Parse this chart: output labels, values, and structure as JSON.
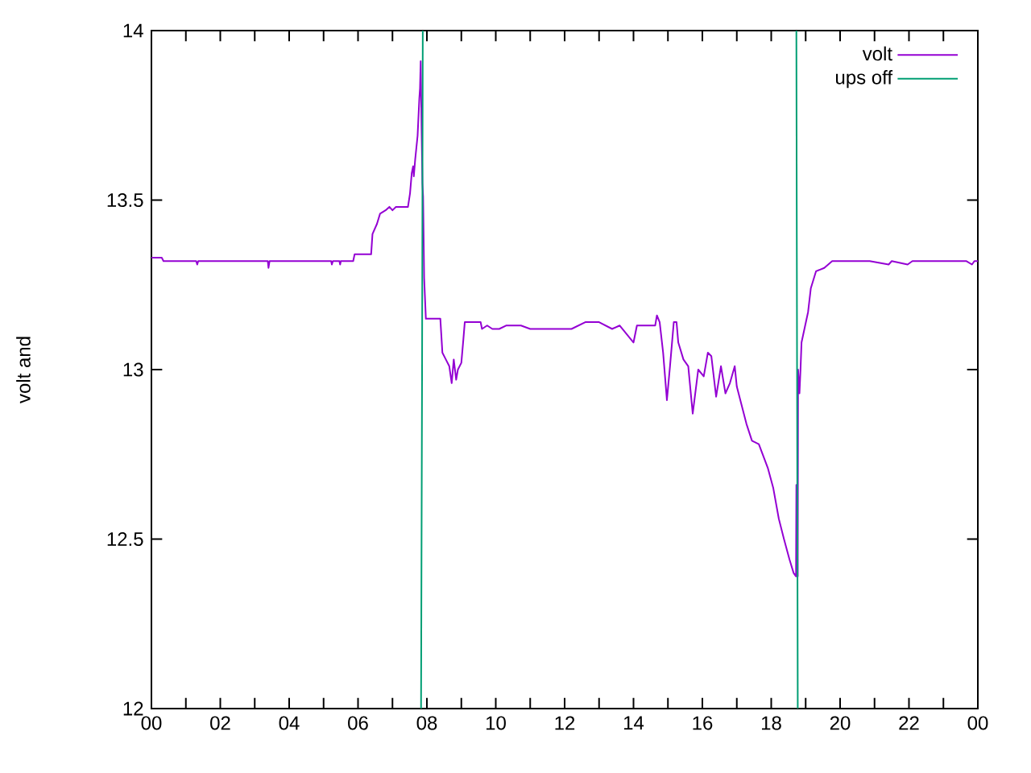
{
  "chart_data": {
    "type": "line",
    "ylabel": "volt and",
    "legend": "top right",
    "xlim": [
      0,
      24
    ],
    "ylim": [
      12,
      14
    ],
    "xticks": [
      {
        "value": 0,
        "label": "00"
      },
      {
        "value": 1,
        "label": null
      },
      {
        "value": 2,
        "label": "02"
      },
      {
        "value": 3,
        "label": null
      },
      {
        "value": 4,
        "label": "04"
      },
      {
        "value": 5,
        "label": null
      },
      {
        "value": 6,
        "label": "06"
      },
      {
        "value": 7,
        "label": null
      },
      {
        "value": 8,
        "label": "08"
      },
      {
        "value": 9,
        "label": null
      },
      {
        "value": 10,
        "label": "10"
      },
      {
        "value": 11,
        "label": null
      },
      {
        "value": 12,
        "label": "12"
      },
      {
        "value": 13,
        "label": null
      },
      {
        "value": 14,
        "label": "14"
      },
      {
        "value": 15,
        "label": null
      },
      {
        "value": 16,
        "label": "16"
      },
      {
        "value": 17,
        "label": null
      },
      {
        "value": 18,
        "label": "18"
      },
      {
        "value": 19,
        "label": null
      },
      {
        "value": 20,
        "label": "20"
      },
      {
        "value": 21,
        "label": null
      },
      {
        "value": 22,
        "label": "22"
      },
      {
        "value": 23,
        "label": null
      },
      {
        "value": 24,
        "label": "00"
      }
    ],
    "yticks": [
      12,
      12.5,
      13,
      13.5,
      14
    ],
    "series": [
      {
        "name": "volt",
        "color": "#9400d3",
        "x": [
          0,
          0.3,
          0.35,
          1.3,
          1.33,
          1.36,
          3.38,
          3.4,
          3.43,
          5.22,
          5.24,
          5.27,
          5.46,
          5.48,
          5.5,
          5.86,
          5.9,
          6.38,
          6.42,
          6.55,
          6.64,
          6.8,
          6.91,
          7.0,
          7.1,
          7.45,
          7.51,
          7.56,
          7.6,
          7.62,
          7.66,
          7.73,
          7.78,
          7.8,
          7.82,
          7.84,
          7.87,
          7.89,
          7.92,
          7.97,
          8.39,
          8.45,
          8.55,
          8.65,
          8.72,
          8.78,
          8.85,
          8.9,
          9.0,
          9.06,
          9.1,
          9.56,
          9.6,
          9.75,
          9.9,
          10.1,
          10.3,
          10.73,
          11.0,
          11.66,
          12.2,
          12.6,
          13.0,
          13.38,
          13.6,
          14.0,
          14.1,
          14.63,
          14.68,
          14.76,
          14.86,
          14.97,
          15.06,
          15.17,
          15.25,
          15.3,
          15.45,
          15.59,
          15.72,
          15.88,
          16.04,
          16.16,
          16.26,
          16.4,
          16.54,
          16.67,
          16.8,
          16.94,
          17.0,
          17.28,
          17.44,
          17.64,
          17.9,
          18.06,
          18.22,
          18.37,
          18.53,
          18.65,
          18.72,
          18.73,
          18.74,
          18.77,
          18.78,
          18.82,
          18.85,
          18.88,
          19.07,
          19.15,
          19.3,
          19.54,
          19.77,
          20.86,
          21.41,
          21.5,
          21.96,
          22.1,
          23.67,
          23.83,
          23.9,
          24
        ],
        "values": [
          13.33,
          13.33,
          13.32,
          13.32,
          13.31,
          13.32,
          13.32,
          13.3,
          13.32,
          13.32,
          13.31,
          13.32,
          13.32,
          13.31,
          13.32,
          13.32,
          13.34,
          13.34,
          13.4,
          13.43,
          13.46,
          13.47,
          13.48,
          13.47,
          13.48,
          13.48,
          13.52,
          13.58,
          13.6,
          13.57,
          13.62,
          13.69,
          13.8,
          13.83,
          13.91,
          13.75,
          13.55,
          13.51,
          13.27,
          13.15,
          13.15,
          13.05,
          13.03,
          13.01,
          12.96,
          13.03,
          12.97,
          13.0,
          13.02,
          13.09,
          13.14,
          13.14,
          13.12,
          13.13,
          13.12,
          13.12,
          13.13,
          13.13,
          13.12,
          13.12,
          13.12,
          13.14,
          13.14,
          13.12,
          13.13,
          13.08,
          13.13,
          13.13,
          13.16,
          13.14,
          13.05,
          12.91,
          13.01,
          13.14,
          13.14,
          13.08,
          13.03,
          13.01,
          12.87,
          13.0,
          12.98,
          13.05,
          13.04,
          12.92,
          13.01,
          12.93,
          12.96,
          13.01,
          12.95,
          12.84,
          12.79,
          12.78,
          12.71,
          12.65,
          12.56,
          12.5,
          12.44,
          12.4,
          12.39,
          12.66,
          12.39,
          12.39,
          13.0,
          12.93,
          13.0,
          13.08,
          13.17,
          13.24,
          13.29,
          13.3,
          13.32,
          13.32,
          13.31,
          13.32,
          13.31,
          13.32,
          13.32,
          13.31,
          13.32,
          13.32
        ]
      },
      {
        "name": "ups off",
        "color": "#009e73",
        "x": [
          7.83,
          7.86,
          7.88,
          12,
          18.73,
          18.75,
          18.77
        ],
        "values": [
          12,
          13,
          14,
          null,
          14,
          13,
          12
        ]
      }
    ]
  }
}
